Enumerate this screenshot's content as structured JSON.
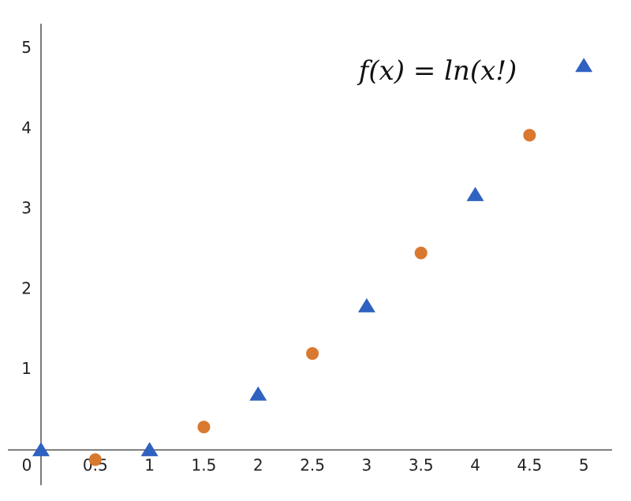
{
  "chart_data": {
    "type": "scatter",
    "annotation": "f(x) = ln(x!)",
    "xlim": [
      -0.305,
      5.26
    ],
    "ylim": [
      -0.44,
      5.31
    ],
    "xticks": [
      0,
      0.5,
      1,
      1.5,
      2,
      2.5,
      3,
      3.5,
      4,
      4.5,
      5
    ],
    "yticks": [
      1,
      2,
      3,
      4,
      5
    ],
    "series": [
      {
        "marker": "triangle",
        "color": "#2f62c0",
        "x": [
          0,
          1,
          2,
          3,
          4,
          5
        ],
        "values": [
          0,
          0,
          0.693,
          1.792,
          3.178,
          4.787
        ]
      },
      {
        "marker": "circle",
        "color": "#d9782f",
        "x": [
          0.5,
          1.5,
          2.5,
          3.5,
          4.5
        ],
        "values": [
          -0.121,
          0.285,
          1.201,
          2.454,
          3.921
        ]
      }
    ]
  }
}
